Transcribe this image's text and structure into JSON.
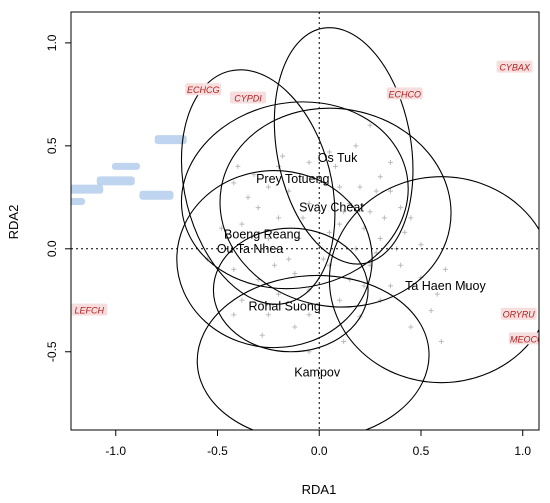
{
  "chart_data": {
    "type": "scatter",
    "title": "",
    "xlabel": "RDA1",
    "ylabel": "RDA2",
    "xlim": [
      -1.22,
      1.08
    ],
    "ylim": [
      -0.88,
      1.15
    ],
    "xticks": [
      -1.0,
      -0.5,
      0.0,
      0.5,
      1.0
    ],
    "yticks": [
      -0.5,
      0.0,
      0.5,
      1.0
    ],
    "xtick_labels": [
      "-1.0",
      "-0.5",
      "0.0",
      "0.5",
      "1.0"
    ],
    "ytick_labels": [
      "-0.5",
      "0.0",
      "0.5",
      "1.0"
    ],
    "grid": false,
    "reference_lines": {
      "x": 0,
      "y": 0,
      "style": "dotted"
    },
    "colors": {
      "ellipse": "#000000",
      "species_label": "#b22222",
      "species_highlight": "#f6dede",
      "blurred_label": "#a9c6e8",
      "site_point": "#bbbbbb"
    },
    "groups": [
      {
        "name": "Os Tuk",
        "x": 0.09,
        "y": 0.44,
        "cx": 0.12,
        "cy": 0.5,
        "rx": 0.33,
        "ry": 0.58,
        "rot": 10
      },
      {
        "name": "Prey Totueng",
        "x": -0.13,
        "y": 0.34,
        "cx": -0.12,
        "cy": 0.26,
        "rx": 0.56,
        "ry": 0.45,
        "rot": 10
      },
      {
        "name": "Svay Cheat",
        "x": 0.06,
        "y": 0.2,
        "cx": 0.08,
        "cy": 0.2,
        "rx": 0.57,
        "ry": 0.48,
        "rot": -10
      },
      {
        "name": "Boeng Reang",
        "x": -0.28,
        "y": 0.07,
        "cx": -0.3,
        "cy": 0.3,
        "rx": 0.36,
        "ry": 0.58,
        "rot": 14
      },
      {
        "name": "Ou Ta Nhea",
        "x": -0.34,
        "y": 0.0,
        "cx": -0.22,
        "cy": -0.05,
        "rx": 0.48,
        "ry": 0.43,
        "rot": 0
      },
      {
        "name": "Ta Haen Muoy",
        "x": 0.62,
        "y": -0.18,
        "cx": 0.6,
        "cy": -0.15,
        "rx": 0.55,
        "ry": 0.5,
        "rot": 0
      },
      {
        "name": "Rohal Suong",
        "x": -0.17,
        "y": -0.28,
        "cx": -0.14,
        "cy": -0.2,
        "rx": 0.38,
        "ry": 0.3,
        "rot": 0
      },
      {
        "name": "Kampov",
        "x": -0.01,
        "y": -0.6,
        "cx": -0.03,
        "cy": -0.53,
        "rx": 0.57,
        "ry": 0.4,
        "rot": 3
      }
    ],
    "species": [
      {
        "name": "ECHCG",
        "x": -0.57,
        "y": 0.77
      },
      {
        "name": "CYPDI",
        "x": -0.35,
        "y": 0.73
      },
      {
        "name": "ECHCO",
        "x": 0.42,
        "y": 0.75
      },
      {
        "name": "CYBAX",
        "x": 0.96,
        "y": 0.88
      },
      {
        "name": "LEFCH",
        "x": -1.13,
        "y": -0.3
      },
      {
        "name": "ORYRU",
        "x": 0.98,
        "y": -0.32
      },
      {
        "name": "MEOCC",
        "x": 1.02,
        "y": -0.44
      }
    ],
    "site_points": [
      [
        0.25,
        0.6
      ],
      [
        0.18,
        0.5
      ],
      [
        0.05,
        0.47
      ],
      [
        -0.05,
        0.42
      ],
      [
        -0.2,
        0.4
      ],
      [
        -0.4,
        0.4
      ],
      [
        -0.42,
        0.32
      ],
      [
        -0.25,
        0.3
      ],
      [
        -0.15,
        0.28
      ],
      [
        0.0,
        0.35
      ],
      [
        0.1,
        0.3
      ],
      [
        0.2,
        0.3
      ],
      [
        0.3,
        0.35
      ],
      [
        0.35,
        0.28
      ],
      [
        -0.35,
        0.25
      ],
      [
        -0.3,
        0.2
      ],
      [
        -0.05,
        0.22
      ],
      [
        0.15,
        0.22
      ],
      [
        0.25,
        0.18
      ],
      [
        0.32,
        0.15
      ],
      [
        0.4,
        0.2
      ],
      [
        -0.2,
        0.15
      ],
      [
        0.1,
        0.12
      ],
      [
        0.22,
        0.1
      ],
      [
        0.3,
        0.05
      ],
      [
        0.42,
        0.08
      ],
      [
        -0.48,
        0.1
      ],
      [
        -0.25,
        0.05
      ],
      [
        -0.1,
        0.05
      ],
      [
        0.05,
        0.08
      ],
      [
        0.18,
        0.0
      ],
      [
        0.28,
        -0.02
      ],
      [
        0.38,
        0.0
      ],
      [
        0.5,
        0.02
      ],
      [
        -0.55,
        -0.05
      ],
      [
        -0.42,
        -0.1
      ],
      [
        -0.15,
        -0.05
      ],
      [
        0.05,
        -0.08
      ],
      [
        0.25,
        -0.08
      ],
      [
        0.4,
        -0.08
      ],
      [
        -0.12,
        -0.12
      ],
      [
        -0.3,
        -0.15
      ],
      [
        0.15,
        -0.15
      ],
      [
        0.35,
        -0.18
      ],
      [
        0.5,
        -0.14
      ],
      [
        0.62,
        -0.1
      ],
      [
        -0.05,
        -0.2
      ],
      [
        -0.2,
        -0.22
      ],
      [
        -0.38,
        -0.25
      ],
      [
        0.1,
        -0.25
      ],
      [
        0.3,
        -0.25
      ],
      [
        0.58,
        -0.22
      ],
      [
        0.72,
        -0.18
      ],
      [
        -0.42,
        -0.32
      ],
      [
        -0.25,
        -0.32
      ],
      [
        -0.05,
        -0.32
      ],
      [
        0.2,
        -0.33
      ],
      [
        0.45,
        -0.38
      ],
      [
        -0.12,
        -0.38
      ],
      [
        0.55,
        -0.3
      ],
      [
        -0.28,
        -0.42
      ],
      [
        -0.05,
        -0.5
      ],
      [
        0.12,
        -0.45
      ],
      [
        0.6,
        -0.45
      ],
      [
        -0.18,
        0.45
      ],
      [
        -0.38,
        0.12
      ],
      [
        0.08,
        0.4
      ],
      [
        -0.32,
        0.36
      ],
      [
        0.35,
        0.42
      ],
      [
        0.02,
        -0.05
      ],
      [
        0.12,
        0.18
      ],
      [
        -0.08,
        0.15
      ],
      [
        0.28,
        0.28
      ],
      [
        0.45,
        0.15
      ],
      [
        0.22,
        -0.18
      ],
      [
        -0.22,
        -0.08
      ]
    ],
    "blurred_labels": [
      {
        "x": -0.73,
        "y": 0.53,
        "w": 32,
        "h": 9
      },
      {
        "x": -0.95,
        "y": 0.4,
        "w": 28,
        "h": 7
      },
      {
        "x": -1.15,
        "y": 0.29,
        "w": 36,
        "h": 9
      },
      {
        "x": -1.2,
        "y": 0.23,
        "w": 20,
        "h": 7
      },
      {
        "x": -1.0,
        "y": 0.33,
        "w": 38,
        "h": 9
      },
      {
        "x": -0.8,
        "y": 0.26,
        "w": 34,
        "h": 9
      }
    ]
  }
}
